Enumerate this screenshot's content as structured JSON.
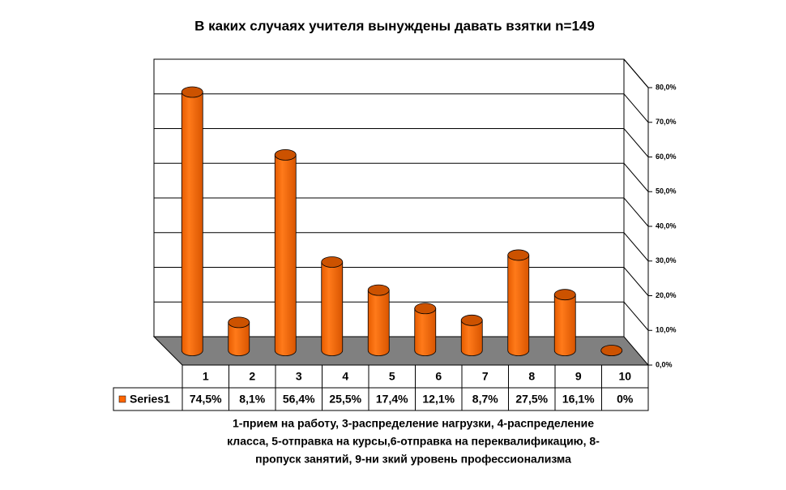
{
  "chart_data": {
    "type": "bar",
    "title": "В каких случаях учителя вынуждены давать взятки n=149",
    "categories": [
      "1",
      "2",
      "3",
      "4",
      "5",
      "6",
      "7",
      "8",
      "9",
      "10"
    ],
    "series": [
      {
        "name": "Series1",
        "color": "#ff6600",
        "values": [
          74.5,
          8.1,
          56.4,
          25.5,
          17.4,
          12.1,
          8.7,
          27.5,
          16.1,
          0
        ],
        "value_labels": [
          "74,5%",
          "8,1%",
          "56,4%",
          "25,5%",
          "17,4%",
          "12,1%",
          "8,7%",
          "27,5%",
          "16,1%",
          "0%"
        ]
      }
    ],
    "ylim": [
      0,
      80
    ],
    "yticks": [
      {
        "value": 0,
        "label": "0,0%"
      },
      {
        "value": 10,
        "label": "10,0%"
      },
      {
        "value": 20,
        "label": "20,0%"
      },
      {
        "value": 30,
        "label": "30,0%"
      },
      {
        "value": 40,
        "label": "40,0%"
      },
      {
        "value": 50,
        "label": "50,0%"
      },
      {
        "value": 60,
        "label": "60,0%"
      },
      {
        "value": 70,
        "label": "70,0%"
      },
      {
        "value": 80,
        "label": "80,0%"
      }
    ],
    "grid": true,
    "annotations": [
      "1-прием на работу, 3-распределение нагрузки, 4-распределение",
      "класса, 5-отправка на курсы,6-отправка на переквалификацию, 8-",
      "пропуск занятий, 9-ни зкий уровень профессионализма"
    ]
  }
}
